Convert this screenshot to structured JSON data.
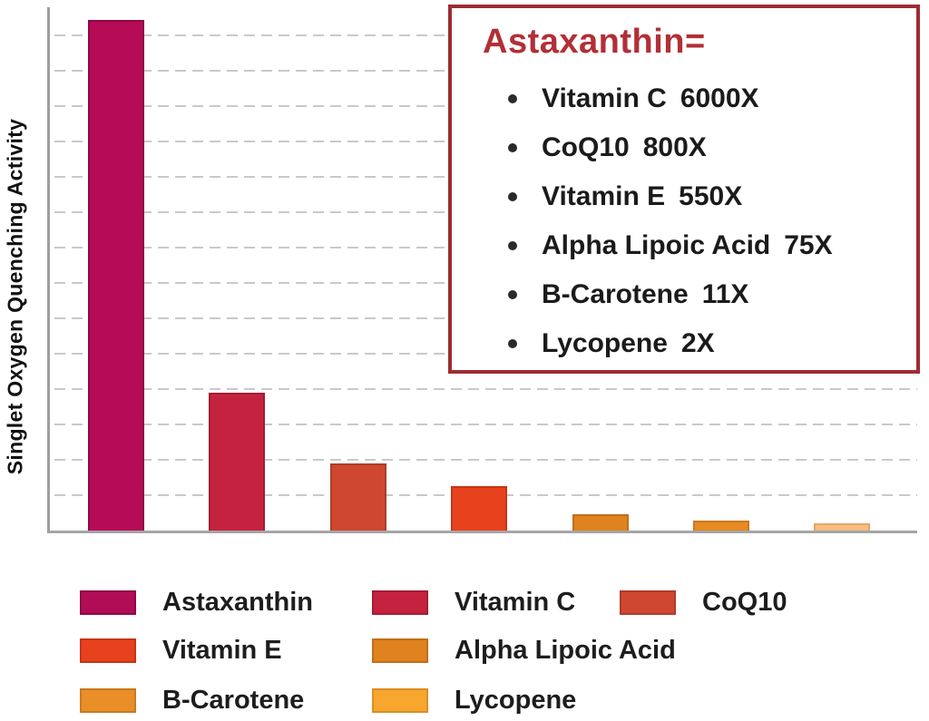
{
  "chart_data": {
    "type": "bar",
    "title": "",
    "xlabel": "",
    "ylabel": "Singlet Oxygen Quenching Activity",
    "categories": [
      "Astaxanthin",
      "Vitamin C",
      "CoQ10",
      "Vitamin E",
      "Alpha Lipoic Acid",
      "B-Carotene",
      "Lycopene"
    ],
    "series": [
      {
        "name": "Singlet Oxygen Quenching Activity (relative, Astaxanthin = 100)",
        "values": [
          100,
          27,
          13.1,
          8.7,
          3.2,
          2.0,
          1.4
        ]
      }
    ],
    "ylim": [
      0,
      100
    ],
    "y_tick_labels_visible": false,
    "x_tick_labels_visible": false,
    "grid": "horizontal dashed gray lines, 14 unlabeled levels",
    "legend_position": "bottom",
    "bars": [
      {
        "label": "Astaxanthin",
        "value_pct": 100,
        "fill": "#B60B56",
        "edge": "#8e0a45"
      },
      {
        "label": "Vitamin C",
        "value_pct": 27,
        "fill": "#C52240",
        "edge": "#a51c35"
      },
      {
        "label": "CoQ10",
        "value_pct": 13.1,
        "fill": "#CF4730",
        "edge": "#ae3c29"
      },
      {
        "label": "Vitamin E",
        "value_pct": 8.7,
        "fill": "#E8411E",
        "edge": "#c43617"
      },
      {
        "label": "Alpha Lipoic Acid",
        "value_pct": 3.2,
        "fill": "#E0821F",
        "edge": "#c06f1b"
      },
      {
        "label": "B-Carotene",
        "value_pct": 2.0,
        "fill": "#E78A21",
        "edge": "#c97a22"
      },
      {
        "label": "Lycopene",
        "value_pct": 1.4,
        "fill": "#F7BE80",
        "edge": "#e5a668"
      }
    ]
  },
  "annotation_box": {
    "title": "Astaxanthin=",
    "title_color": "#B22F37",
    "border_color": "#9E2C34",
    "items": [
      {
        "name": "Vitamin C",
        "multiplier": "6000X"
      },
      {
        "name": "CoQ10",
        "multiplier": "800X"
      },
      {
        "name": "Vitamin E",
        "multiplier": "550X"
      },
      {
        "name": "Alpha Lipoic Acid",
        "multiplier": "75X"
      },
      {
        "name": "B-Carotene",
        "multiplier": "11X"
      },
      {
        "name": "Lycopene",
        "multiplier": "2X"
      }
    ]
  },
  "legend": {
    "rows": [
      [
        {
          "label": "Astaxanthin",
          "fill": "#B00D56",
          "edge": "#8e0a45"
        },
        {
          "label": "Vitamin C",
          "fill": "#C52240",
          "edge": "#a51c35"
        },
        {
          "label": "CoQ10",
          "fill": "#CF4730",
          "edge": "#ae3c29"
        }
      ],
      [
        {
          "label": "Vitamin E",
          "fill": "#E8411E",
          "edge": "#c43617"
        },
        {
          "label": "Alpha Lipoic Acid",
          "fill": "#E0821F",
          "edge": "#c06f1b"
        }
      ],
      [
        {
          "label": "B-Carotene",
          "fill": "#EA8E28",
          "edge": "#c97a22"
        },
        {
          "label": "Lycopene",
          "fill": "#F7A62E",
          "edge": "#d98f26"
        }
      ]
    ]
  },
  "axes": {
    "axis_color": "#9e9e9e",
    "gridline_color": "#c9c9c9"
  }
}
